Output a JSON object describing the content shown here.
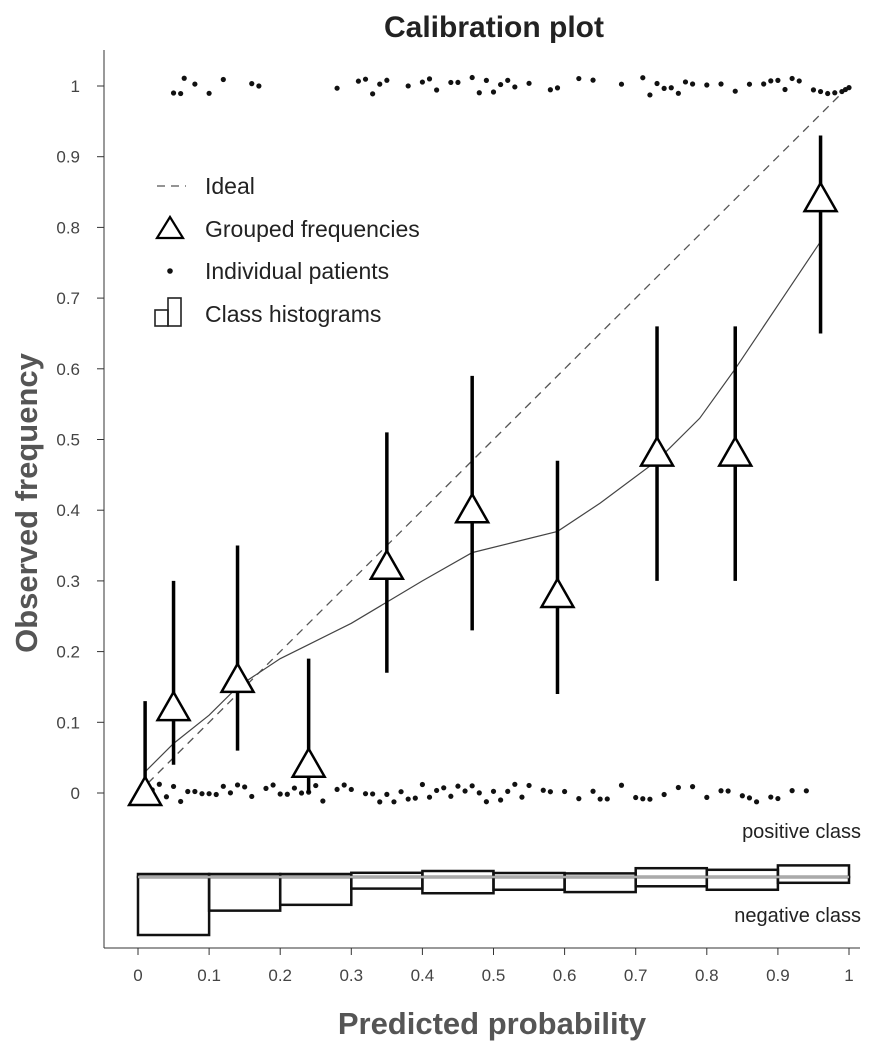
{
  "chart_data": {
    "type": "scatter",
    "title": "Calibration plot",
    "xlabel": "Predicted probability",
    "ylabel": "Observed frequency",
    "xlim": [
      0,
      1
    ],
    "ylim": [
      0,
      1
    ],
    "x_ticks": [
      "0",
      "0.1",
      "0.2",
      "0.3",
      "0.4",
      "0.5",
      "0.6",
      "0.7",
      "0.8",
      "0.9",
      "1"
    ],
    "y_ticks": [
      "0",
      "0.1",
      "0.2",
      "0.3",
      "0.4",
      "0.5",
      "0.6",
      "0.7",
      "0.8",
      "0.9",
      "1"
    ],
    "legend": {
      "placement": "top-left",
      "items": [
        {
          "key": "ideal",
          "label": "Ideal"
        },
        {
          "key": "grouped",
          "label": "Grouped frequencies"
        },
        {
          "key": "patients",
          "label": "Individual patients"
        },
        {
          "key": "histograms",
          "label": "Class histograms"
        }
      ]
    },
    "ideal_line": {
      "x": [
        0,
        1
      ],
      "y": [
        0,
        1
      ]
    },
    "grouped_frequencies": [
      {
        "x": 0.01,
        "y": 0.0,
        "lower": 0.0,
        "upper": 0.13
      },
      {
        "x": 0.05,
        "y": 0.12,
        "lower": 0.04,
        "upper": 0.3
      },
      {
        "x": 0.14,
        "y": 0.16,
        "lower": 0.06,
        "upper": 0.35
      },
      {
        "x": 0.24,
        "y": 0.04,
        "lower": 0.0,
        "upper": 0.19
      },
      {
        "x": 0.35,
        "y": 0.32,
        "lower": 0.17,
        "upper": 0.51
      },
      {
        "x": 0.47,
        "y": 0.4,
        "lower": 0.23,
        "upper": 0.59
      },
      {
        "x": 0.59,
        "y": 0.28,
        "lower": 0.14,
        "upper": 0.47
      },
      {
        "x": 0.73,
        "y": 0.48,
        "lower": 0.3,
        "upper": 0.66
      },
      {
        "x": 0.84,
        "y": 0.48,
        "lower": 0.3,
        "upper": 0.66
      },
      {
        "x": 0.96,
        "y": 0.84,
        "lower": 0.65,
        "upper": 0.93
      }
    ],
    "smoothed_curve": {
      "x": [
        0.01,
        0.05,
        0.1,
        0.14,
        0.2,
        0.24,
        0.3,
        0.35,
        0.4,
        0.47,
        0.53,
        0.59,
        0.65,
        0.73,
        0.79,
        0.84,
        0.9,
        0.96
      ],
      "y": [
        0.03,
        0.07,
        0.11,
        0.15,
        0.19,
        0.21,
        0.24,
        0.27,
        0.3,
        0.34,
        0.355,
        0.37,
        0.41,
        0.47,
        0.53,
        0.6,
        0.69,
        0.78
      ]
    },
    "individual_patients": {
      "positive_class": [
        0.05,
        0.06,
        0.065,
        0.08,
        0.1,
        0.12,
        0.16,
        0.17,
        0.28,
        0.31,
        0.32,
        0.33,
        0.34,
        0.35,
        0.38,
        0.4,
        0.41,
        0.42,
        0.44,
        0.45,
        0.47,
        0.48,
        0.49,
        0.5,
        0.51,
        0.52,
        0.53,
        0.55,
        0.58,
        0.59,
        0.62,
        0.64,
        0.68,
        0.71,
        0.72,
        0.73,
        0.74,
        0.75,
        0.76,
        0.77,
        0.78,
        0.8,
        0.82,
        0.84,
        0.86,
        0.88,
        0.89,
        0.9,
        0.91,
        0.92,
        0.93,
        0.95,
        0.96,
        0.97,
        0.98,
        0.99,
        0.995,
        1.0
      ],
      "negative_class": [
        0.02,
        0.03,
        0.04,
        0.05,
        0.06,
        0.07,
        0.08,
        0.09,
        0.1,
        0.11,
        0.12,
        0.13,
        0.14,
        0.15,
        0.16,
        0.18,
        0.19,
        0.2,
        0.21,
        0.22,
        0.23,
        0.24,
        0.25,
        0.26,
        0.28,
        0.29,
        0.3,
        0.32,
        0.33,
        0.34,
        0.35,
        0.36,
        0.37,
        0.38,
        0.39,
        0.4,
        0.41,
        0.42,
        0.43,
        0.44,
        0.45,
        0.46,
        0.47,
        0.48,
        0.49,
        0.5,
        0.51,
        0.52,
        0.53,
        0.54,
        0.55,
        0.57,
        0.58,
        0.6,
        0.62,
        0.64,
        0.65,
        0.66,
        0.68,
        0.7,
        0.71,
        0.72,
        0.74,
        0.76,
        0.78,
        0.8,
        0.82,
        0.83,
        0.85,
        0.86,
        0.87,
        0.89,
        0.9,
        0.92,
        0.94
      ]
    },
    "class_histograms": {
      "bins": [
        0,
        0.1,
        0.2,
        0.3,
        0.4,
        0.5,
        0.6,
        0.7,
        0.8,
        0.9,
        1.0
      ],
      "positive_relative_height": [
        0.05,
        0.05,
        0.02,
        0.21,
        0.3,
        0.2,
        0.18,
        0.44,
        0.36,
        0.58
      ],
      "negative_relative_height": [
        1.0,
        0.58,
        0.48,
        0.2,
        0.28,
        0.22,
        0.26,
        0.16,
        0.22,
        0.1
      ],
      "positive_label": "positive class",
      "negative_label": "negative class"
    }
  }
}
